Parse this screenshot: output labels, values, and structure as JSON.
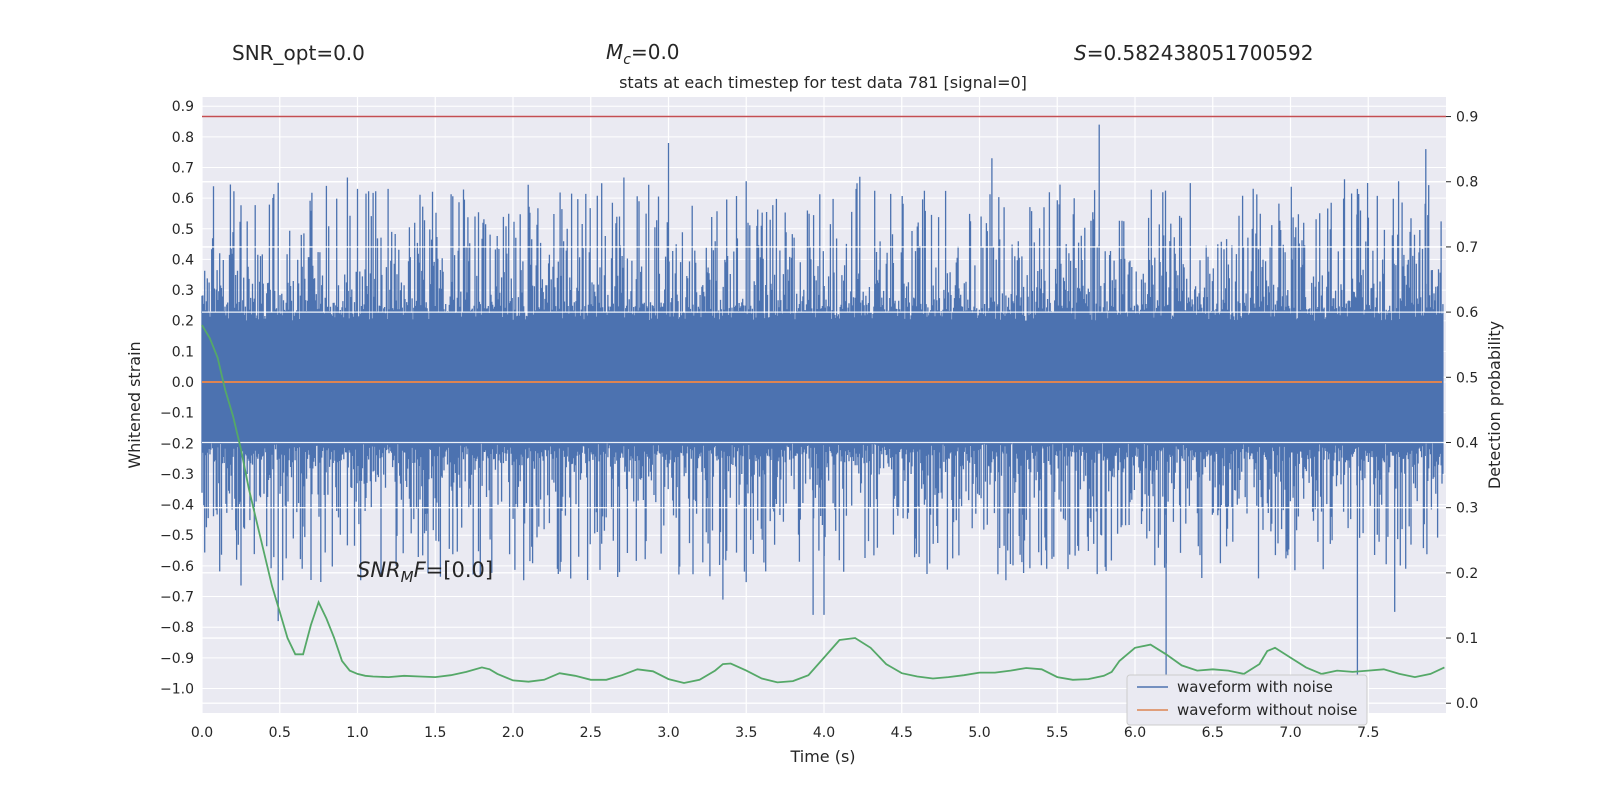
{
  "header": {
    "snr_opt": "SNR_opt=0.0",
    "mc_symbol": "M",
    "mc_sub": "c",
    "mc_value": "=0.0",
    "s_symbol": "S",
    "s_value": "=0.582438051700592"
  },
  "annotation": {
    "snr_symbol": "SNR",
    "snr_sub": "M",
    "snr_rest": "F",
    "snr_value": "=[0.0]"
  },
  "colors": {
    "background": "#eaeaf2",
    "grid": "#ffffff",
    "noise": "#4c72b0",
    "clean": "#dd8452",
    "probability": "#55a868",
    "threshold": "#c44e52"
  },
  "chart_data": {
    "type": "line",
    "title": "stats at each timestep for test data 781 [signal=0]",
    "xlabel": "Time (s)",
    "ylabel": "Whitened strain",
    "y2label": "Detection probability",
    "xlim": [
      0.0,
      8.0
    ],
    "ylim": [
      -1.08,
      0.93
    ],
    "y2lim": [
      -0.015,
      0.93
    ],
    "xticks": [
      "0.0",
      "0.5",
      "1.0",
      "1.5",
      "2.0",
      "2.5",
      "3.0",
      "3.5",
      "4.0",
      "4.5",
      "5.0",
      "5.5",
      "6.0",
      "6.5",
      "7.0",
      "7.5"
    ],
    "yticks": [
      "0.9",
      "0.8",
      "0.7",
      "0.6",
      "0.5",
      "0.4",
      "0.3",
      "0.2",
      "0.1",
      "0.0",
      "−0.1",
      "−0.2",
      "−0.3",
      "−0.4",
      "−0.5",
      "−0.6",
      "−0.7",
      "−0.8",
      "−0.9",
      "−1.0"
    ],
    "y2ticks": [
      "0.9",
      "0.8",
      "0.7",
      "0.6",
      "0.5",
      "0.4",
      "0.3",
      "0.2",
      "0.1",
      "0.0"
    ],
    "grid": true,
    "legend_position": "lower-right",
    "series": [
      {
        "name": "waveform with noise",
        "axis": "left",
        "envelope": {
          "upper_typical": 0.35,
          "lower_typical": -0.35
        },
        "peaks": [
          {
            "x": 0.49,
            "y": 0.65
          },
          {
            "x": 0.8,
            "y": 0.64
          },
          {
            "x": 1.0,
            "y": 0.63
          },
          {
            "x": 3.0,
            "y": 0.78
          },
          {
            "x": 4.23,
            "y": 0.67
          },
          {
            "x": 5.08,
            "y": 0.73
          },
          {
            "x": 5.77,
            "y": 0.84
          },
          {
            "x": 7.43,
            "y": 0.63
          },
          {
            "x": 7.87,
            "y": 0.76
          }
        ],
        "troughs": [
          {
            "x": 0.49,
            "y": -0.78
          },
          {
            "x": 3.35,
            "y": -0.71
          },
          {
            "x": 3.93,
            "y": -0.76
          },
          {
            "x": 4.0,
            "y": -0.76
          },
          {
            "x": 6.2,
            "y": -1.0
          },
          {
            "x": 7.43,
            "y": -0.98
          },
          {
            "x": 7.67,
            "y": -0.75
          }
        ]
      },
      {
        "name": "waveform without noise",
        "axis": "left",
        "x": [
          0.0,
          8.0
        ],
        "y": [
          0.0,
          0.0
        ]
      },
      {
        "axis": "right",
        "x": [
          0.0,
          0.05,
          0.1,
          0.15,
          0.2,
          0.25,
          0.3,
          0.35,
          0.4,
          0.45,
          0.5,
          0.55,
          0.6,
          0.65,
          0.7,
          0.75,
          0.8,
          0.85,
          0.9,
          0.95,
          1.0,
          1.05,
          1.1,
          1.2,
          1.3,
          1.4,
          1.5,
          1.6,
          1.7,
          1.8,
          1.85,
          1.9,
          2.0,
          2.1,
          2.2,
          2.3,
          2.4,
          2.5,
          2.6,
          2.7,
          2.8,
          2.9,
          3.0,
          3.1,
          3.2,
          3.3,
          3.35,
          3.4,
          3.5,
          3.6,
          3.7,
          3.8,
          3.9,
          4.0,
          4.1,
          4.2,
          4.3,
          4.4,
          4.5,
          4.6,
          4.7,
          4.8,
          4.9,
          5.0,
          5.1,
          5.2,
          5.3,
          5.4,
          5.5,
          5.6,
          5.7,
          5.8,
          5.85,
          5.9,
          6.0,
          6.1,
          6.2,
          6.3,
          6.4,
          6.5,
          6.6,
          6.7,
          6.8,
          6.85,
          6.9,
          7.0,
          7.1,
          7.2,
          7.3,
          7.4,
          7.5,
          7.6,
          7.7,
          7.8,
          7.9,
          7.99
        ],
        "y": [
          0.58,
          0.56,
          0.53,
          0.48,
          0.44,
          0.39,
          0.33,
          0.28,
          0.23,
          0.18,
          0.14,
          0.1,
          0.075,
          0.075,
          0.12,
          0.155,
          0.13,
          0.1,
          0.065,
          0.05,
          0.045,
          0.042,
          0.041,
          0.04,
          0.042,
          0.041,
          0.04,
          0.043,
          0.048,
          0.055,
          0.052,
          0.045,
          0.035,
          0.033,
          0.036,
          0.046,
          0.042,
          0.036,
          0.036,
          0.043,
          0.052,
          0.049,
          0.037,
          0.031,
          0.036,
          0.05,
          0.06,
          0.061,
          0.05,
          0.038,
          0.032,
          0.034,
          0.043,
          0.07,
          0.097,
          0.1,
          0.085,
          0.06,
          0.046,
          0.041,
          0.038,
          0.04,
          0.043,
          0.047,
          0.047,
          0.05,
          0.054,
          0.052,
          0.04,
          0.036,
          0.037,
          0.042,
          0.048,
          0.065,
          0.085,
          0.09,
          0.075,
          0.058,
          0.05,
          0.052,
          0.05,
          0.045,
          0.06,
          0.08,
          0.085,
          0.07,
          0.055,
          0.045,
          0.05,
          0.048,
          0.05,
          0.052,
          0.045,
          0.04,
          0.045,
          0.055
        ]
      }
    ],
    "threshold_line": {
      "axis": "right",
      "y": 0.9
    }
  },
  "legend": {
    "noise_label": "waveform with noise",
    "clean_label": "waveform without noise"
  }
}
